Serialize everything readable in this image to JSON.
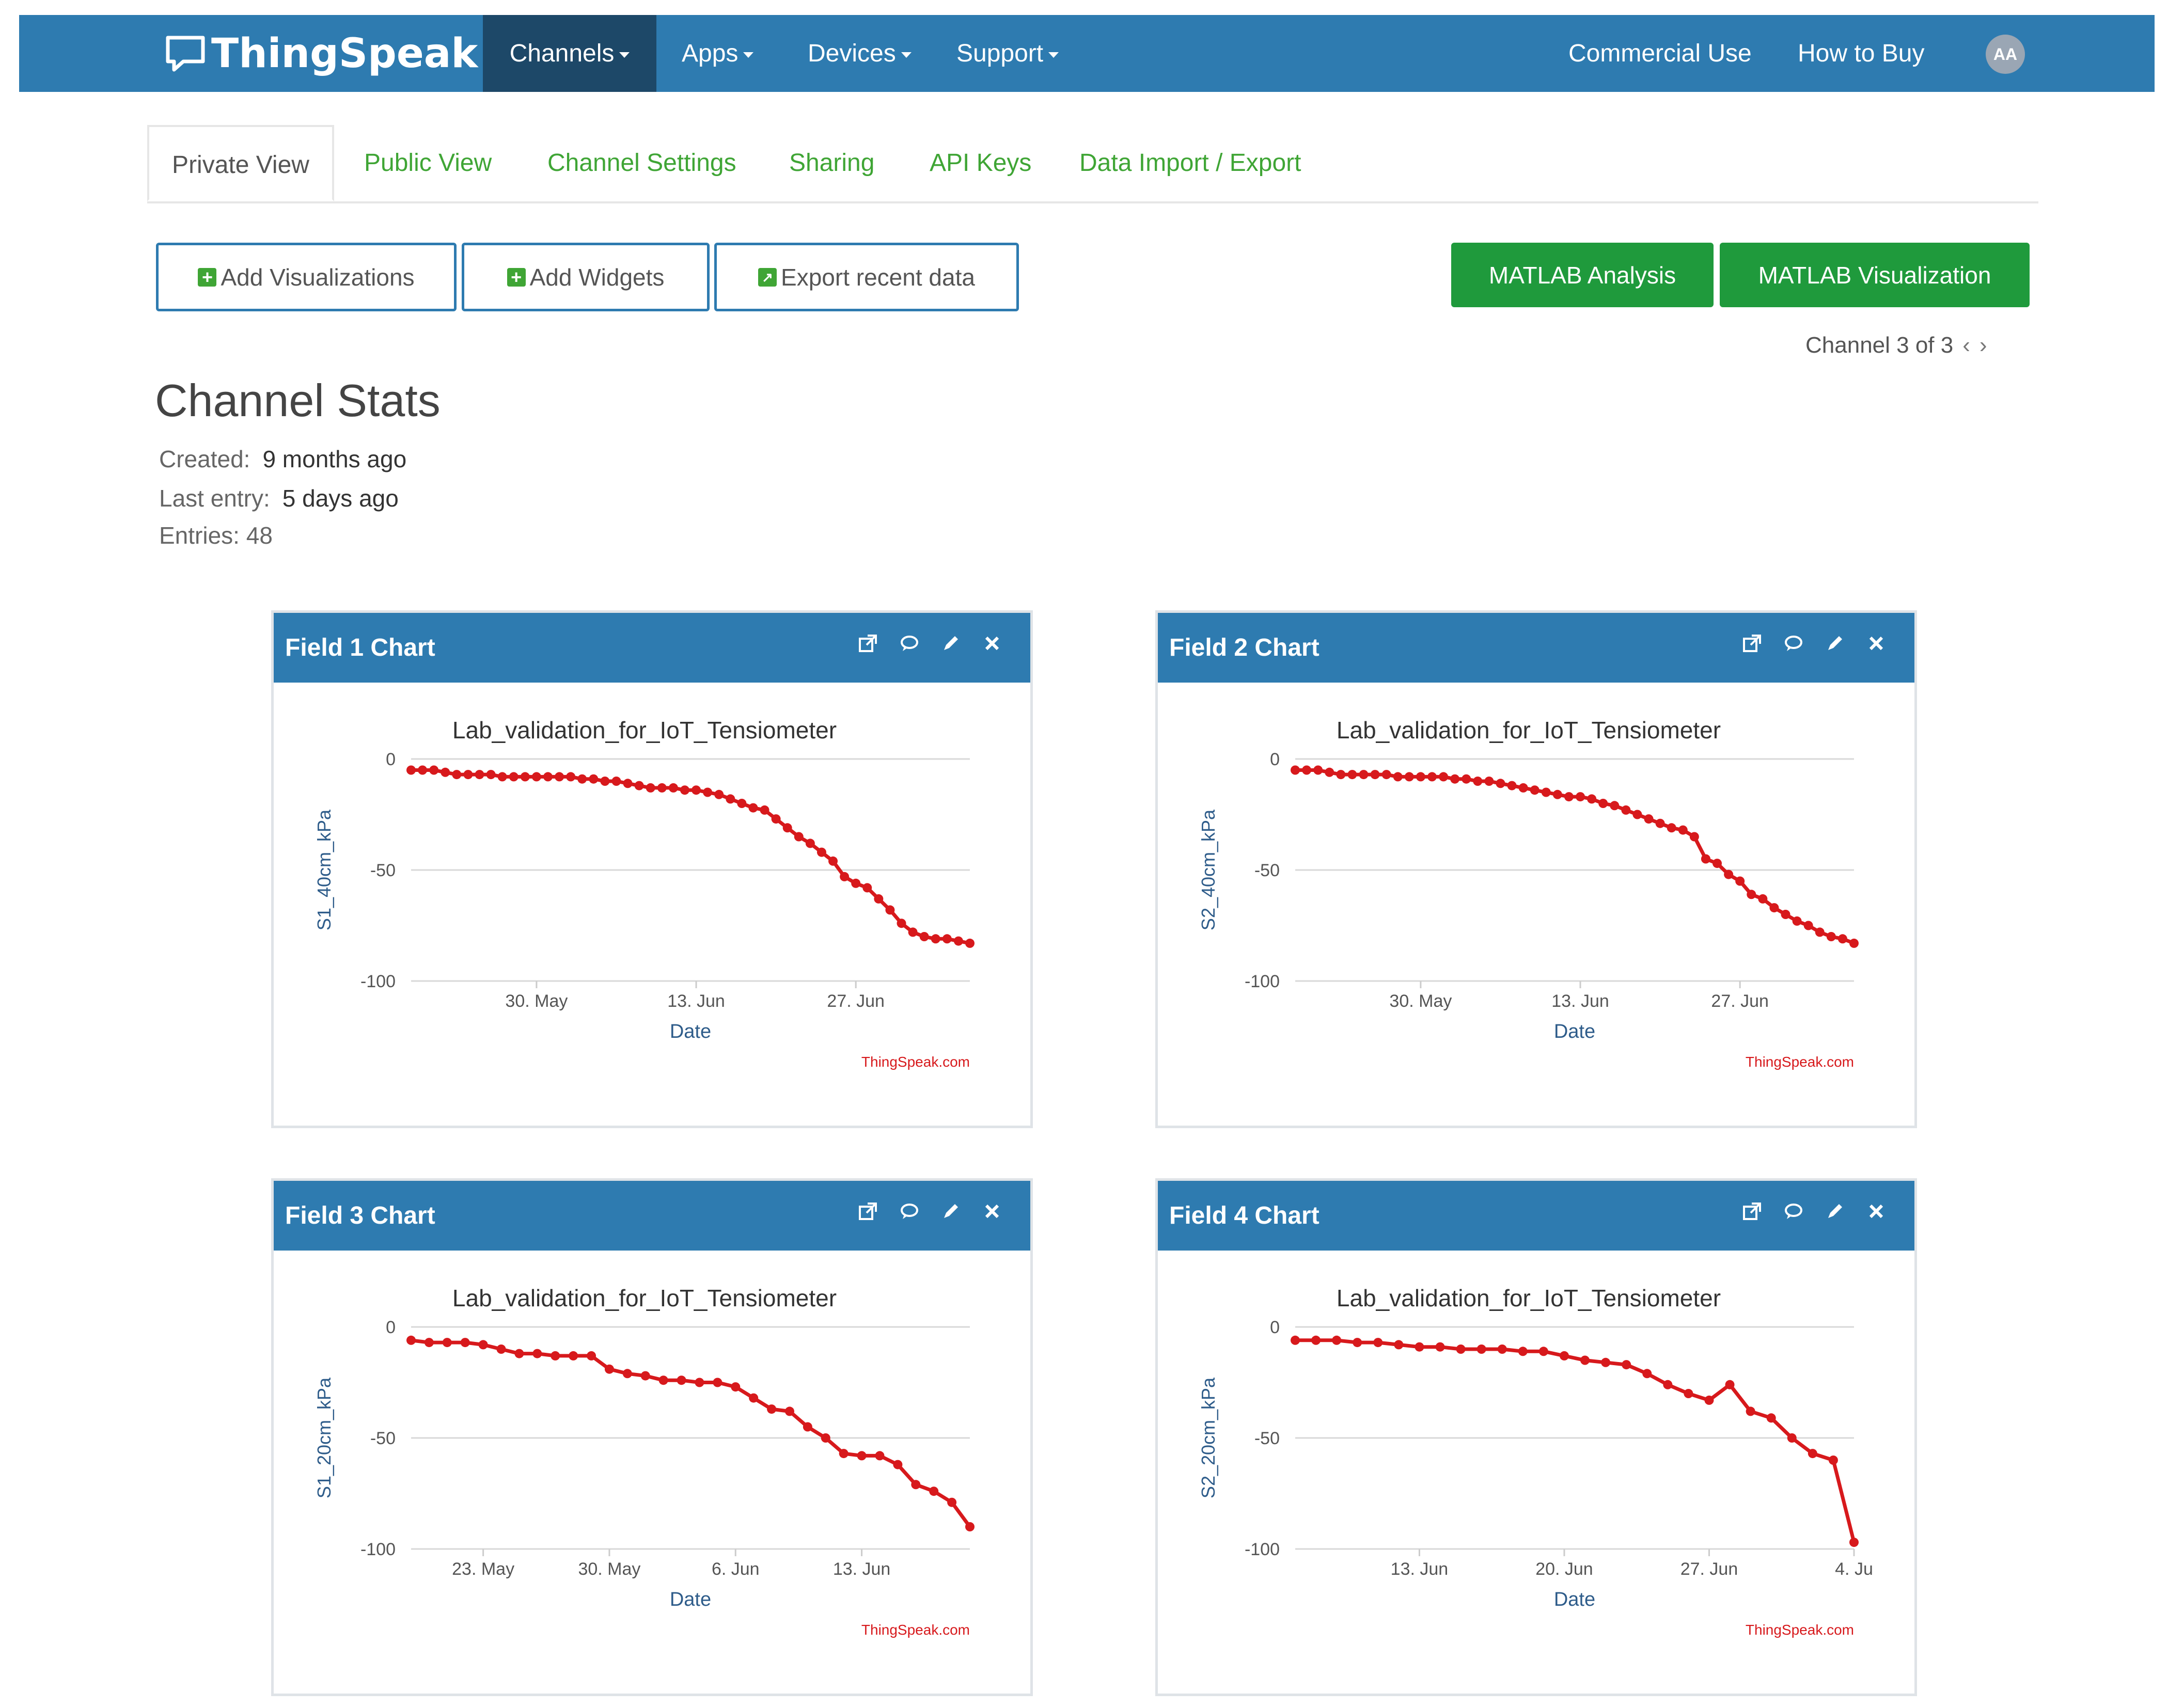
{
  "topbar": {
    "brand": "ThingSpeak",
    "trademark": "™",
    "nav": [
      {
        "label": "Channels",
        "active": true
      },
      {
        "label": "Apps",
        "active": false
      },
      {
        "label": "Devices",
        "active": false
      },
      {
        "label": "Support",
        "active": false
      }
    ],
    "commercial_use": "Commercial Use",
    "how_to_buy": "How to Buy",
    "avatar_initials": "AA"
  },
  "tabs": [
    "Private View",
    "Public View",
    "Channel Settings",
    "Sharing",
    "API Keys",
    "Data Import / Export"
  ],
  "actions": {
    "add_visualizations": "Add Visualizations",
    "add_widgets": "Add Widgets",
    "export_recent_data": "Export recent data",
    "matlab_analysis": "MATLAB Analysis",
    "matlab_visualization": "MATLAB Visualization"
  },
  "pager": {
    "label": "Channel 3 of 3",
    "prev": "‹",
    "next": "›"
  },
  "stats": {
    "title": "Channel Stats",
    "created_label": "Created:",
    "created_value": "9 months ago",
    "last_entry_label": "Last entry:",
    "last_entry_value": "5 days ago",
    "entries_label": "Entries:",
    "entries_value": "48"
  },
  "colors": {
    "accent": "#2e7bb0",
    "green": "#1f9a3c",
    "link_green": "#3fa535",
    "series": "#d7191c"
  },
  "icons": [
    "external-link-icon",
    "comment-icon",
    "pencil-icon",
    "close-icon"
  ],
  "panels": [
    {
      "title": "Field 1 Chart"
    },
    {
      "title": "Field 2 Chart"
    },
    {
      "title": "Field 3 Chart"
    },
    {
      "title": "Field 4 Chart"
    }
  ],
  "chart_data": [
    {
      "type": "line",
      "title": "Lab_validation_for_IoT_Tensiometer",
      "xlabel": "Date",
      "ylabel": "S1_40cm_kPa",
      "credit": "ThingSpeak.com",
      "ylim": [
        -100,
        0
      ],
      "yticks": [
        "0",
        "-50",
        "-100"
      ],
      "xticks": [
        "30. May",
        "13. Jun",
        "27. Jun"
      ],
      "xtick_dates": [
        "2020-05-30",
        "2020-06-13",
        "2020-06-27"
      ],
      "xlim": [
        "2020-05-19",
        "2020-07-07"
      ],
      "x": [
        "2020-05-19",
        "2020-05-20",
        "2020-05-21",
        "2020-05-22",
        "2020-05-23",
        "2020-05-24",
        "2020-05-25",
        "2020-05-26",
        "2020-05-27",
        "2020-05-28",
        "2020-05-29",
        "2020-05-30",
        "2020-05-31",
        "2020-06-01",
        "2020-06-02",
        "2020-06-03",
        "2020-06-04",
        "2020-06-05",
        "2020-06-06",
        "2020-06-07",
        "2020-06-08",
        "2020-06-09",
        "2020-06-10",
        "2020-06-11",
        "2020-06-12",
        "2020-06-13",
        "2020-06-14",
        "2020-06-15",
        "2020-06-16",
        "2020-06-17",
        "2020-06-18",
        "2020-06-19",
        "2020-06-20",
        "2020-06-21",
        "2020-06-22",
        "2020-06-23",
        "2020-06-24",
        "2020-06-25",
        "2020-06-26",
        "2020-06-27",
        "2020-06-28",
        "2020-06-29",
        "2020-06-30",
        "2020-07-01",
        "2020-07-02",
        "2020-07-03",
        "2020-07-04",
        "2020-07-05",
        "2020-07-06",
        "2020-07-07"
      ],
      "series": [
        {
          "values": [
            -5,
            -5,
            -5,
            -6,
            -7,
            -7,
            -7,
            -7,
            -8,
            -8,
            -8,
            -8,
            -8,
            -8,
            -8,
            -9,
            -9,
            -10,
            -10,
            -11,
            -12,
            -13,
            -13,
            -13,
            -14,
            -14,
            -15,
            -16,
            -18,
            -20,
            -22,
            -23,
            -27,
            -31,
            -35,
            -38,
            -42,
            -46,
            -53,
            -56,
            -58,
            -63,
            -68,
            -74,
            -78,
            -80,
            -81,
            -81,
            -82,
            -83
          ]
        }
      ]
    },
    {
      "type": "line",
      "title": "Lab_validation_for_IoT_Tensiometer",
      "xlabel": "Date",
      "ylabel": "S2_40cm_kPa",
      "credit": "ThingSpeak.com",
      "ylim": [
        -100,
        0
      ],
      "yticks": [
        "0",
        "-50",
        "-100"
      ],
      "xticks": [
        "30. May",
        "13. Jun",
        "27. Jun"
      ],
      "xtick_dates": [
        "2020-05-30",
        "2020-06-13",
        "2020-06-27"
      ],
      "xlim": [
        "2020-05-19",
        "2020-07-07"
      ],
      "x": [
        "2020-05-19",
        "2020-05-20",
        "2020-05-21",
        "2020-05-22",
        "2020-05-23",
        "2020-05-24",
        "2020-05-25",
        "2020-05-26",
        "2020-05-27",
        "2020-05-28",
        "2020-05-29",
        "2020-05-30",
        "2020-05-31",
        "2020-06-01",
        "2020-06-02",
        "2020-06-03",
        "2020-06-04",
        "2020-06-05",
        "2020-06-06",
        "2020-06-07",
        "2020-06-08",
        "2020-06-09",
        "2020-06-10",
        "2020-06-11",
        "2020-06-12",
        "2020-06-13",
        "2020-06-14",
        "2020-06-15",
        "2020-06-16",
        "2020-06-17",
        "2020-06-18",
        "2020-06-19",
        "2020-06-20",
        "2020-06-21",
        "2020-06-22",
        "2020-06-23",
        "2020-06-24",
        "2020-06-25",
        "2020-06-26",
        "2020-06-27",
        "2020-06-28",
        "2020-06-29",
        "2020-06-30",
        "2020-07-01",
        "2020-07-02",
        "2020-07-03",
        "2020-07-04",
        "2020-07-05",
        "2020-07-06",
        "2020-07-07"
      ],
      "series": [
        {
          "values": [
            -5,
            -5,
            -5,
            -6,
            -7,
            -7,
            -7,
            -7,
            -7,
            -8,
            -8,
            -8,
            -8,
            -8,
            -9,
            -9,
            -10,
            -10,
            -11,
            -12,
            -13,
            -14,
            -15,
            -16,
            -17,
            -17,
            -18,
            -20,
            -21,
            -23,
            -25,
            -27,
            -29,
            -31,
            -32,
            -35,
            -45,
            -47,
            -52,
            -55,
            -61,
            -63,
            -67,
            -70,
            -73,
            -75,
            -78,
            -80,
            -81,
            -83
          ]
        }
      ]
    },
    {
      "type": "line",
      "title": "Lab_validation_for_IoT_Tensiometer",
      "xlabel": "Date",
      "ylabel": "S1_20cm_kPa",
      "credit": "ThingSpeak.com",
      "ylim": [
        -100,
        0
      ],
      "yticks": [
        "0",
        "-50",
        "-100"
      ],
      "xticks": [
        "23. May",
        "30. May",
        "6. Jun",
        "13. Jun"
      ],
      "xtick_dates": [
        "2020-05-23",
        "2020-05-30",
        "2020-06-06",
        "2020-06-13"
      ],
      "xlim": [
        "2020-05-19",
        "2020-06-19"
      ],
      "x": [
        "2020-05-19",
        "2020-05-20",
        "2020-05-21",
        "2020-05-22",
        "2020-05-23",
        "2020-05-24",
        "2020-05-25",
        "2020-05-26",
        "2020-05-27",
        "2020-05-28",
        "2020-05-29",
        "2020-05-30",
        "2020-05-31",
        "2020-06-01",
        "2020-06-02",
        "2020-06-03",
        "2020-06-04",
        "2020-06-05",
        "2020-06-06",
        "2020-06-07",
        "2020-06-08",
        "2020-06-09",
        "2020-06-10",
        "2020-06-11",
        "2020-06-12",
        "2020-06-13",
        "2020-06-14",
        "2020-06-15",
        "2020-06-16",
        "2020-06-17",
        "2020-06-18",
        "2020-06-19"
      ],
      "series": [
        {
          "values": [
            -6,
            -7,
            -7,
            -7,
            -8,
            -10,
            -12,
            -12,
            -13,
            -13,
            -13,
            -19,
            -21,
            -22,
            -24,
            -24,
            -25,
            -25,
            -27,
            -32,
            -37,
            -38,
            -45,
            -50,
            -57,
            -58,
            -58,
            -62,
            -71,
            -74,
            -79,
            -90
          ]
        }
      ]
    },
    {
      "type": "line",
      "title": "Lab_validation_for_IoT_Tensiometer",
      "xlabel": "Date",
      "ylabel": "S2_20cm_kPa",
      "credit": "ThingSpeak.com",
      "ylim": [
        -100,
        0
      ],
      "yticks": [
        "0",
        "-50",
        "-100"
      ],
      "xticks": [
        "13. Jun",
        "20. Jun",
        "27. Jun",
        "4. Ju"
      ],
      "xtick_dates": [
        "2020-06-13",
        "2020-06-20",
        "2020-06-27",
        "2020-07-04"
      ],
      "xlim": [
        "2020-06-07",
        "2020-07-04"
      ],
      "x": [
        "2020-06-07",
        "2020-06-08",
        "2020-06-09",
        "2020-06-10",
        "2020-06-11",
        "2020-06-12",
        "2020-06-13",
        "2020-06-14",
        "2020-06-15",
        "2020-06-16",
        "2020-06-17",
        "2020-06-18",
        "2020-06-19",
        "2020-06-20",
        "2020-06-21",
        "2020-06-22",
        "2020-06-23",
        "2020-06-24",
        "2020-06-25",
        "2020-06-26",
        "2020-06-27",
        "2020-06-28",
        "2020-06-29",
        "2020-06-30",
        "2020-07-01",
        "2020-07-02",
        "2020-07-03",
        "2020-07-04"
      ],
      "series": [
        {
          "values": [
            -6,
            -6,
            -6,
            -7,
            -7,
            -8,
            -9,
            -9,
            -10,
            -10,
            -10,
            -11,
            -11,
            -13,
            -15,
            -16,
            -17,
            -21,
            -26,
            -30,
            -33,
            -26,
            -38,
            -41,
            -50,
            -57,
            -60,
            -97
          ]
        }
      ]
    }
  ]
}
